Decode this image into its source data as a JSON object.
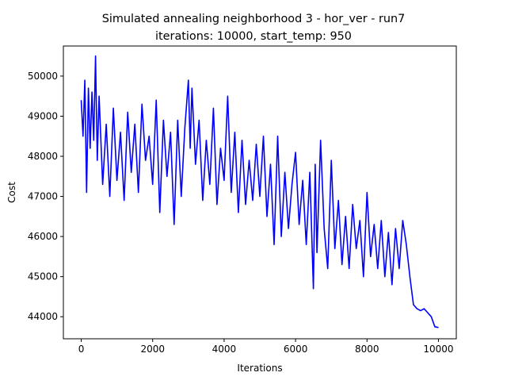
{
  "figure": {
    "title_line1": "Simulated annealing neighborhood 3 - hor_ver - run7",
    "title_line2": "iterations: 10000, start_temp: 950"
  },
  "chart_data": {
    "type": "line",
    "title": "Simulated annealing neighborhood 3 - hor_ver - run7\niterations: 10000, start_temp: 950",
    "xlabel": "Iterations",
    "ylabel": "Cost",
    "xlim": [
      -500,
      10500
    ],
    "ylim": [
      43450,
      50750
    ],
    "xticks": [
      0,
      2000,
      4000,
      6000,
      8000,
      10000
    ],
    "xtick_labels": [
      "0",
      "2000",
      "4000",
      "6000",
      "8000",
      "10000"
    ],
    "yticks": [
      44000,
      45000,
      46000,
      47000,
      48000,
      49000,
      50000
    ],
    "ytick_labels": [
      "44000",
      "45000",
      "46000",
      "47000",
      "48000",
      "49000",
      "50000"
    ],
    "grid": false,
    "series": [
      {
        "color": "#0000ff",
        "x": [
          0,
          50,
          100,
          150,
          200,
          250,
          300,
          350,
          400,
          450,
          500,
          600,
          700,
          800,
          900,
          1000,
          1100,
          1200,
          1300,
          1400,
          1500,
          1600,
          1700,
          1800,
          1900,
          2000,
          2100,
          2200,
          2300,
          2400,
          2500,
          2600,
          2700,
          2800,
          2900,
          3000,
          3050,
          3100,
          3200,
          3300,
          3400,
          3500,
          3600,
          3700,
          3800,
          3900,
          4000,
          4100,
          4200,
          4300,
          4400,
          4500,
          4600,
          4700,
          4800,
          4900,
          5000,
          5100,
          5200,
          5300,
          5400,
          5500,
          5600,
          5700,
          5800,
          5900,
          6000,
          6100,
          6200,
          6300,
          6400,
          6500,
          6550,
          6600,
          6700,
          6800,
          6900,
          7000,
          7100,
          7200,
          7300,
          7400,
          7500,
          7600,
          7700,
          7800,
          7900,
          8000,
          8100,
          8200,
          8300,
          8400,
          8500,
          8600,
          8700,
          8800,
          8900,
          9000,
          9100,
          9200,
          9300,
          9400,
          9500,
          9600,
          9700,
          9800,
          9900,
          10000
        ],
        "y": [
          49400,
          48500,
          49900,
          47100,
          49700,
          48200,
          49600,
          48400,
          50500,
          47900,
          49500,
          47300,
          48800,
          47000,
          49200,
          47400,
          48600,
          46900,
          49100,
          47600,
          48800,
          47100,
          49300,
          47900,
          48500,
          47300,
          49400,
          46600,
          48900,
          47500,
          48600,
          46300,
          48900,
          47000,
          48700,
          49900,
          48200,
          49700,
          47800,
          48900,
          46900,
          48400,
          47300,
          49200,
          46800,
          48200,
          47400,
          49500,
          47100,
          48600,
          46600,
          48400,
          46800,
          47900,
          46900,
          48300,
          47000,
          48500,
          46500,
          47800,
          45800,
          48500,
          46000,
          47600,
          46200,
          47300,
          48100,
          46300,
          47400,
          45800,
          47600,
          44700,
          47800,
          45600,
          48400,
          46200,
          45200,
          47900,
          45700,
          46900,
          45300,
          46500,
          45200,
          46800,
          45700,
          46400,
          45000,
          47100,
          45500,
          46300,
          45200,
          46400,
          45000,
          46100,
          44800,
          46200,
          45200,
          46400,
          45800,
          45000,
          44300,
          44200,
          44150,
          44200,
          44100,
          44000,
          43750,
          43730
        ]
      }
    ]
  }
}
